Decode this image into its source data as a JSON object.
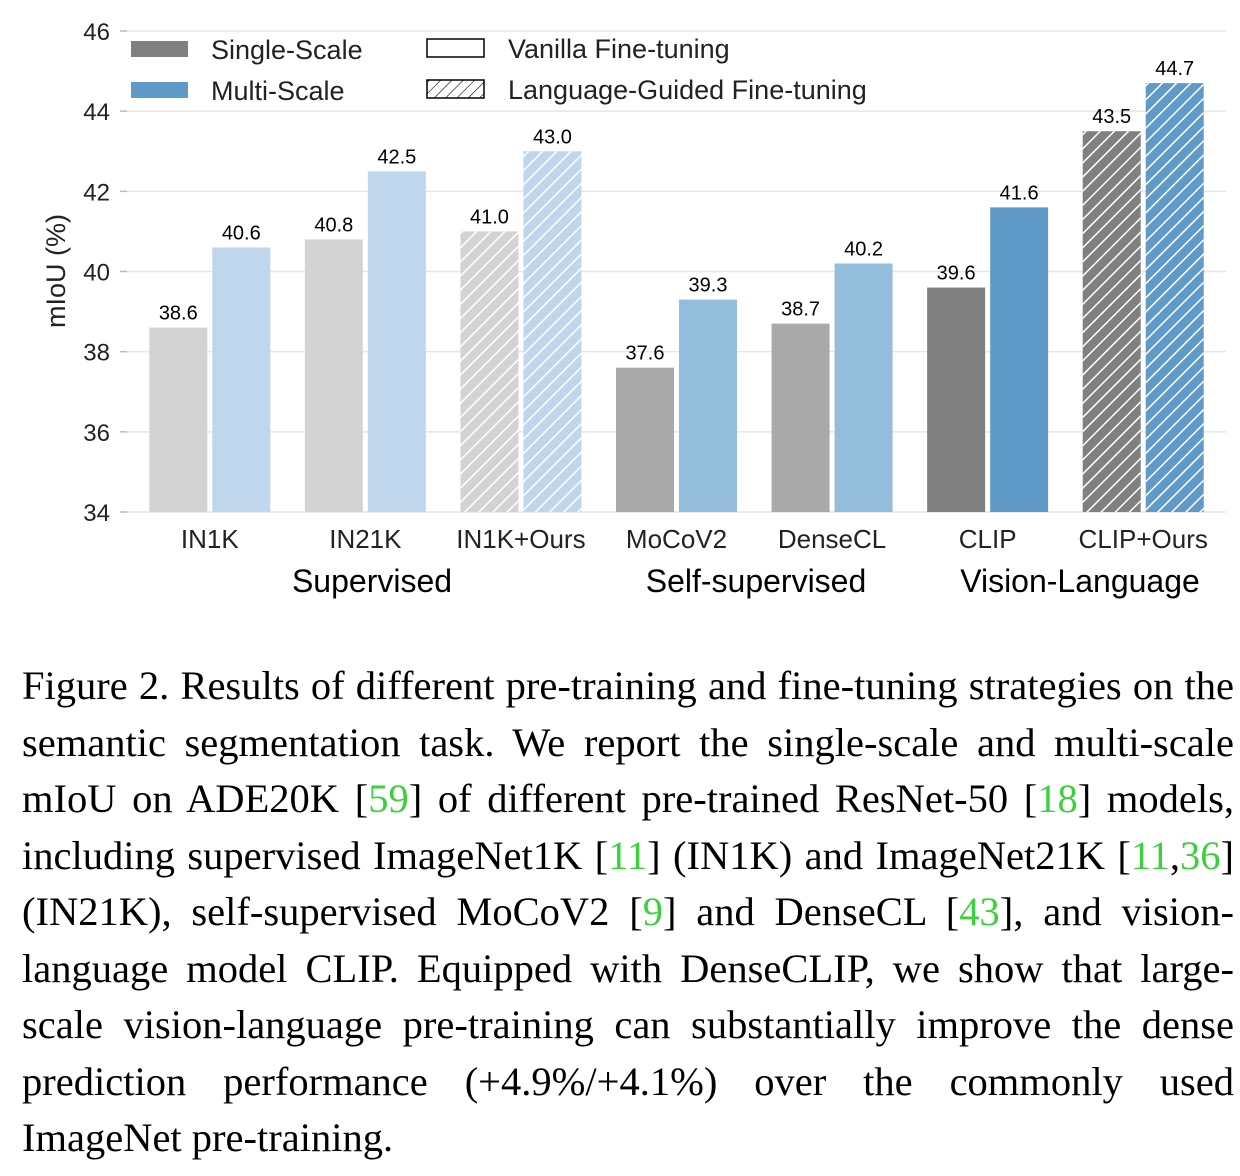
{
  "chart_data": {
    "type": "bar",
    "ylabel": "mIoU (%)",
    "ylim": [
      34,
      46
    ],
    "yticks": [
      34,
      36,
      38,
      40,
      42,
      44,
      46
    ],
    "grid": "horizontal",
    "legend_position": "top-left",
    "legend": [
      {
        "label": "Single-Scale",
        "key": "single"
      },
      {
        "label": "Multi-Scale",
        "key": "multi"
      },
      {
        "label": "Vanilla Fine-tuning",
        "key": "vanilla"
      },
      {
        "label": "Language-Guided Fine-tuning",
        "key": "guided"
      }
    ],
    "categories": [
      "IN1K",
      "IN21K",
      "IN1K+Ours",
      "MoCoV2",
      "DenseCL",
      "CLIP",
      "CLIP+Ours"
    ],
    "groups": [
      {
        "label": "Supervised",
        "categories": [
          "IN1K",
          "IN21K",
          "IN1K+Ours"
        ]
      },
      {
        "label": "Self-supervised",
        "categories": [
          "MoCoV2",
          "DenseCL"
        ]
      },
      {
        "label": "Vision-Language",
        "categories": [
          "CLIP",
          "CLIP+Ours"
        ]
      }
    ],
    "hatched": [
      false,
      false,
      true,
      false,
      false,
      false,
      true
    ],
    "series": [
      {
        "name": "Single-Scale",
        "values": [
          38.6,
          40.8,
          41.0,
          37.6,
          38.7,
          39.6,
          43.5
        ],
        "labels": [
          "38.6",
          "40.8",
          "41.0",
          "37.6",
          "38.7",
          "39.6",
          "43.5"
        ],
        "colors": [
          "#d3d3d3",
          "#d3d3d3",
          "#d3d3d3",
          "#a9a9a9",
          "#a9a9a9",
          "#808080",
          "#808080"
        ]
      },
      {
        "name": "Multi-Scale",
        "values": [
          40.6,
          42.5,
          43.0,
          39.3,
          40.2,
          41.6,
          44.7
        ],
        "labels": [
          "40.6",
          "42.5",
          "43.0",
          "39.3",
          "40.2",
          "41.6",
          "44.7"
        ],
        "colors": [
          "#bfd6ec",
          "#bfd6ec",
          "#bfd6ec",
          "#94bddc",
          "#94bddc",
          "#5f9ac9",
          "#5f9ac9"
        ]
      }
    ]
  },
  "legend_colors": {
    "single": "#808080",
    "multi": "#5f9ac9"
  },
  "caption": {
    "p1": "Figure 2. Results of different pre-training and fine-tuning strategies on the semantic segmentation task. We report the single-scale and multi-scale mIoU on ADE20K [",
    "r1": "59",
    "p2": "] of different pre-trained ResNet-50 [",
    "r2": "18",
    "p3": "] models, including supervised ImageNet1K [",
    "r3": "11",
    "p4": "] (IN1K) and ImageNet21K [",
    "r4": "11",
    "p5": ",",
    "r5": "36",
    "p6": "] (IN21K), self-supervised MoCoV2 [",
    "r6": "9",
    "p7": "] and DenseCL [",
    "r7": "43",
    "p8": "], and vision-language model CLIP. Equipped with DenseCLIP, we show that large-scale vision-language pre-training can substantially improve the dense prediction performance (+4.9%/+4.1%) over the commonly used ImageNet pre-training."
  }
}
